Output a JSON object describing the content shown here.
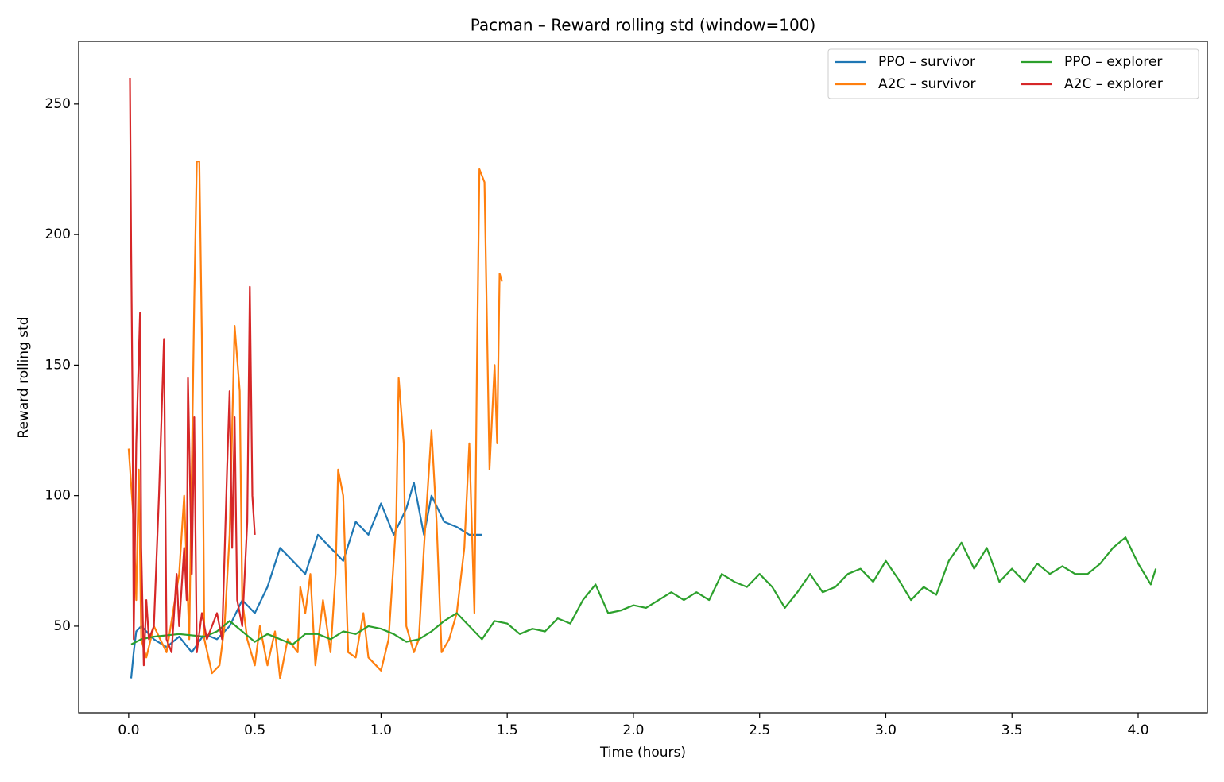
{
  "chart_data": {
    "type": "line",
    "title": "Pacman – Reward rolling std (window=100)",
    "xlabel": "Time (hours)",
    "ylabel": "Reward rolling std",
    "xlim": [
      -0.198,
      4.274
    ],
    "ylim": [
      16.8,
      274.0
    ],
    "xticks": [
      {
        "value": 0,
        "label": "0.0"
      },
      {
        "value": 0.5,
        "label": "0.5"
      },
      {
        "value": 1,
        "label": "1.0"
      },
      {
        "value": 1.5,
        "label": "1.5"
      },
      {
        "value": 2,
        "label": "2.0"
      },
      {
        "value": 2.5,
        "label": "2.5"
      },
      {
        "value": 3,
        "label": "3.0"
      },
      {
        "value": 3.5,
        "label": "3.5"
      },
      {
        "value": 4,
        "label": "4.0"
      }
    ],
    "yticks": [
      50,
      100,
      150,
      200,
      250
    ],
    "grid": false,
    "legend_loc": "upper right",
    "legend_columns": 2,
    "series": [
      {
        "name": "PPO – survivor",
        "color": "#1f77b4",
        "x": [
          0.01,
          0.02,
          0.03,
          0.05,
          0.1,
          0.15,
          0.2,
          0.25,
          0.3,
          0.35,
          0.4,
          0.45,
          0.5,
          0.55,
          0.6,
          0.65,
          0.7,
          0.75,
          0.8,
          0.85,
          0.9,
          0.95,
          1.0,
          1.05,
          1.1,
          1.13,
          1.17,
          1.2,
          1.25,
          1.3,
          1.35,
          1.4
        ],
        "values": [
          30,
          40,
          48,
          50,
          45,
          42,
          46,
          40,
          47,
          45,
          50,
          60,
          55,
          65,
          80,
          75,
          70,
          85,
          80,
          75,
          90,
          85,
          97,
          85,
          95,
          105,
          85,
          100,
          90,
          88,
          85,
          85
        ]
      },
      {
        "name": "A2C – survivor",
        "color": "#ff7f0e",
        "x": [
          0.0,
          0.02,
          0.03,
          0.04,
          0.05,
          0.07,
          0.1,
          0.15,
          0.2,
          0.22,
          0.24,
          0.26,
          0.27,
          0.28,
          0.29,
          0.3,
          0.33,
          0.36,
          0.38,
          0.4,
          0.42,
          0.44,
          0.45,
          0.47,
          0.5,
          0.52,
          0.55,
          0.58,
          0.6,
          0.63,
          0.67,
          0.68,
          0.7,
          0.72,
          0.74,
          0.77,
          0.8,
          0.82,
          0.83,
          0.85,
          0.87,
          0.9,
          0.93,
          0.95,
          1.0,
          1.03,
          1.06,
          1.07,
          1.09,
          1.1,
          1.13,
          1.15,
          1.17,
          1.2,
          1.22,
          1.24,
          1.27,
          1.3,
          1.33,
          1.35,
          1.37,
          1.38,
          1.39,
          1.41,
          1.43,
          1.45,
          1.46,
          1.47,
          1.48
        ],
        "values": [
          118,
          90,
          60,
          110,
          45,
          38,
          50,
          40,
          70,
          100,
          45,
          175,
          228,
          228,
          160,
          45,
          32,
          35,
          50,
          85,
          165,
          140,
          60,
          45,
          35,
          50,
          35,
          48,
          30,
          45,
          40,
          65,
          55,
          70,
          35,
          60,
          40,
          70,
          110,
          100,
          40,
          38,
          55,
          38,
          33,
          45,
          90,
          145,
          120,
          50,
          40,
          45,
          80,
          125,
          90,
          40,
          45,
          55,
          80,
          120,
          55,
          150,
          225,
          220,
          110,
          150,
          120,
          185,
          182
        ]
      },
      {
        "name": "PPO – explorer",
        "color": "#2ca02c",
        "x": [
          0.01,
          0.05,
          0.1,
          0.2,
          0.3,
          0.35,
          0.4,
          0.45,
          0.5,
          0.55,
          0.6,
          0.65,
          0.7,
          0.75,
          0.8,
          0.85,
          0.9,
          0.95,
          1.0,
          1.05,
          1.1,
          1.15,
          1.2,
          1.25,
          1.3,
          1.35,
          1.4,
          1.45,
          1.5,
          1.55,
          1.6,
          1.65,
          1.7,
          1.75,
          1.8,
          1.85,
          1.9,
          1.95,
          2.0,
          2.05,
          2.1,
          2.15,
          2.2,
          2.25,
          2.3,
          2.35,
          2.4,
          2.45,
          2.5,
          2.55,
          2.6,
          2.65,
          2.7,
          2.75,
          2.8,
          2.85,
          2.9,
          2.95,
          3.0,
          3.05,
          3.1,
          3.15,
          3.2,
          3.25,
          3.3,
          3.35,
          3.4,
          3.45,
          3.5,
          3.55,
          3.6,
          3.65,
          3.7,
          3.75,
          3.8,
          3.85,
          3.9,
          3.95,
          4.0,
          4.05,
          4.07
        ],
        "values": [
          43,
          45,
          46,
          47,
          46,
          48,
          52,
          48,
          44,
          47,
          45,
          43,
          47,
          47,
          45,
          48,
          47,
          50,
          49,
          47,
          44,
          45,
          48,
          52,
          55,
          50,
          45,
          52,
          51,
          47,
          49,
          48,
          53,
          51,
          60,
          66,
          55,
          56,
          58,
          57,
          60,
          63,
          60,
          63,
          60,
          70,
          67,
          65,
          70,
          65,
          57,
          63,
          70,
          63,
          65,
          70,
          72,
          67,
          75,
          68,
          60,
          65,
          62,
          75,
          82,
          72,
          80,
          67,
          72,
          67,
          74,
          70,
          73,
          70,
          70,
          74,
          80,
          84,
          74,
          66,
          72
        ]
      },
      {
        "name": "A2C – explorer",
        "color": "#d62728",
        "x": [
          0.005,
          0.01,
          0.015,
          0.02,
          0.03,
          0.045,
          0.05,
          0.06,
          0.07,
          0.08,
          0.1,
          0.12,
          0.13,
          0.14,
          0.15,
          0.17,
          0.19,
          0.2,
          0.22,
          0.23,
          0.235,
          0.25,
          0.26,
          0.27,
          0.29,
          0.31,
          0.33,
          0.35,
          0.37,
          0.39,
          0.4,
          0.41,
          0.42,
          0.43,
          0.45,
          0.47,
          0.48,
          0.49,
          0.5
        ],
        "values": [
          260,
          195,
          140,
          45,
          120,
          170,
          80,
          35,
          60,
          45,
          50,
          100,
          130,
          160,
          45,
          40,
          70,
          50,
          80,
          60,
          145,
          70,
          130,
          40,
          55,
          45,
          50,
          55,
          45,
          110,
          140,
          80,
          130,
          60,
          50,
          90,
          180,
          100,
          85
        ]
      }
    ]
  }
}
